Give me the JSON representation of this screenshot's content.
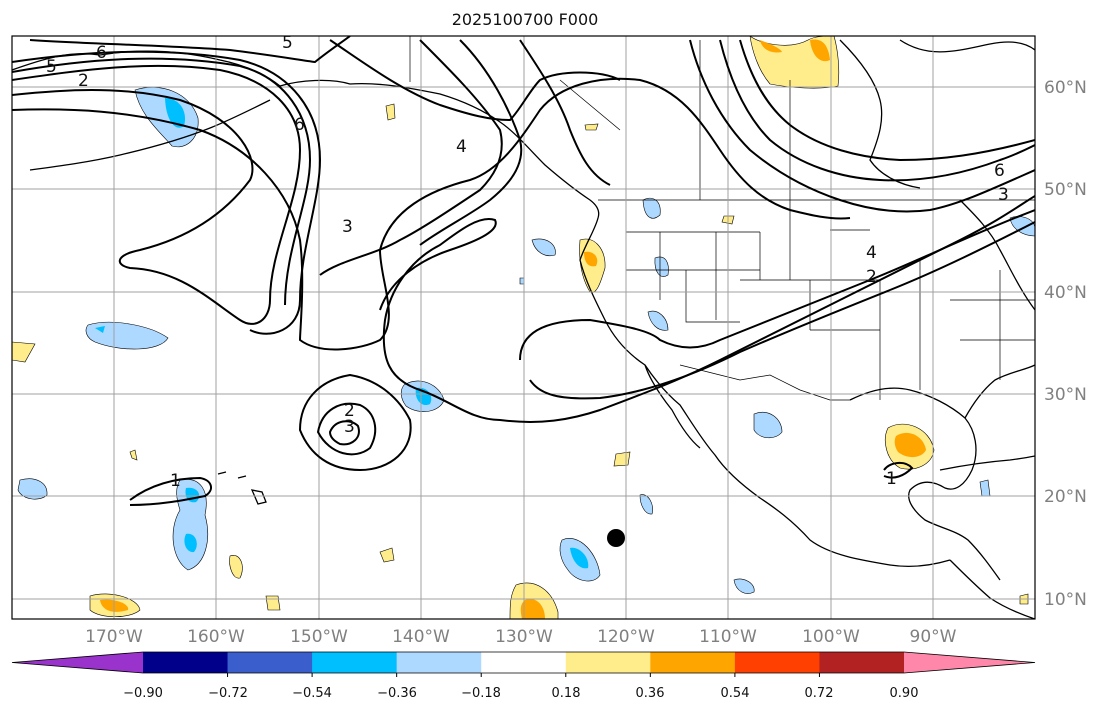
{
  "title": "2025100700 F000",
  "lat_labels": [
    "60°N",
    "50°N",
    "40°N",
    "30°N",
    "20°N",
    "10°N"
  ],
  "lon_labels": [
    "170°W",
    "160°W",
    "150°W",
    "140°W",
    "130°W",
    "120°W",
    "110°W",
    "100°W",
    "90°W"
  ],
  "colorbar": {
    "tick_labels": [
      "−0.90",
      "−0.72",
      "−0.54",
      "−0.36",
      "−0.18",
      "0.18",
      "0.36",
      "0.54",
      "0.72",
      "0.90"
    ],
    "colors": [
      "#9933cc",
      "#00008b",
      "#3a5fcd",
      "#00bfff",
      "#add8ff",
      "#ffffff",
      "#ffec8b",
      "#ffa500",
      "#ff4000",
      "#b22222",
      "#ff88aa"
    ]
  },
  "contour_labels": [
    "5",
    "6",
    "2",
    "5",
    "6",
    "4",
    "3",
    "2",
    "3",
    "1",
    "6",
    "3",
    "4",
    "2",
    "1"
  ],
  "colors": {
    "land_outline": "#000000",
    "grid": "#a0a0a0",
    "contour": "#000000",
    "marker": "#000000"
  }
}
